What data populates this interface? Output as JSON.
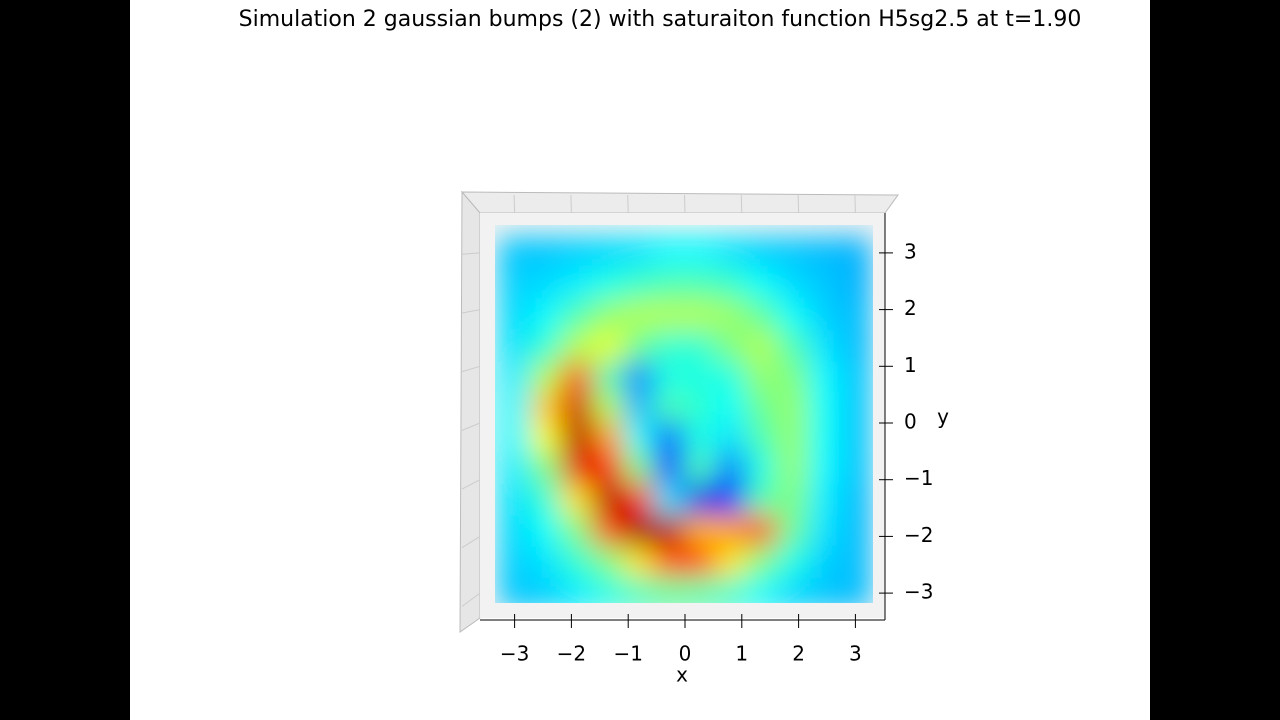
{
  "chart_data": {
    "type": "surface",
    "title": "Simulation 2 gaussian bumps (2) with saturaiton function H5sg2.5 at t=1.90",
    "xlabel": "x",
    "ylabel": "y",
    "colormap": "jet",
    "view": "top",
    "xlim": [
      -3.5,
      3.5
    ],
    "ylim": [
      -3.5,
      3.5
    ],
    "zlim": [
      0,
      1
    ],
    "xticks": [
      {
        "value": -3,
        "label": "−3"
      },
      {
        "value": -2,
        "label": "−2"
      },
      {
        "value": -1,
        "label": "−1"
      },
      0,
      1,
      2,
      3
    ],
    "yticks": [
      3,
      2,
      1,
      0,
      {
        "value": -1,
        "label": "−1"
      },
      {
        "value": -2,
        "label": "−2"
      },
      {
        "value": -3,
        "label": "−3"
      }
    ],
    "x": [
      -3.0,
      -2.45,
      -1.9,
      -1.35,
      -0.8,
      -0.27,
      0.27,
      0.8,
      1.35,
      1.9,
      2.45,
      3.0
    ],
    "y": [
      3.0,
      2.45,
      1.9,
      1.35,
      0.8,
      0.27,
      -0.27,
      -0.8,
      -1.35,
      -1.9,
      -2.45,
      -3.0
    ],
    "z": [
      [
        0.32,
        0.32,
        0.33,
        0.34,
        0.35,
        0.37,
        0.37,
        0.35,
        0.33,
        0.32,
        0.31,
        0.3
      ],
      [
        0.33,
        0.34,
        0.36,
        0.4,
        0.43,
        0.45,
        0.45,
        0.43,
        0.38,
        0.34,
        0.32,
        0.3
      ],
      [
        0.34,
        0.37,
        0.45,
        0.52,
        0.55,
        0.55,
        0.55,
        0.53,
        0.47,
        0.38,
        0.33,
        0.31
      ],
      [
        0.35,
        0.42,
        0.55,
        0.6,
        0.48,
        0.42,
        0.42,
        0.5,
        0.55,
        0.45,
        0.35,
        0.31
      ],
      [
        0.36,
        0.55,
        0.8,
        0.45,
        0.25,
        0.4,
        0.4,
        0.4,
        0.52,
        0.5,
        0.37,
        0.32
      ],
      [
        0.37,
        0.68,
        0.92,
        0.55,
        0.3,
        0.45,
        0.42,
        0.38,
        0.48,
        0.52,
        0.38,
        0.32
      ],
      [
        0.37,
        0.62,
        0.95,
        0.72,
        0.38,
        0.22,
        0.4,
        0.35,
        0.45,
        0.52,
        0.38,
        0.32
      ],
      [
        0.36,
        0.5,
        0.9,
        0.88,
        0.5,
        0.18,
        0.45,
        0.25,
        0.4,
        0.52,
        0.37,
        0.32
      ],
      [
        0.35,
        0.42,
        0.65,
        0.95,
        0.85,
        0.35,
        0.1,
        0.15,
        0.45,
        0.5,
        0.36,
        0.31
      ],
      [
        0.34,
        0.38,
        0.5,
        0.8,
        0.97,
        0.95,
        0.7,
        0.72,
        0.8,
        0.48,
        0.35,
        0.31
      ],
      [
        0.33,
        0.35,
        0.42,
        0.5,
        0.65,
        0.8,
        0.8,
        0.65,
        0.5,
        0.4,
        0.33,
        0.31
      ],
      [
        0.32,
        0.33,
        0.36,
        0.4,
        0.44,
        0.47,
        0.46,
        0.43,
        0.38,
        0.34,
        0.32,
        0.31
      ]
    ]
  }
}
